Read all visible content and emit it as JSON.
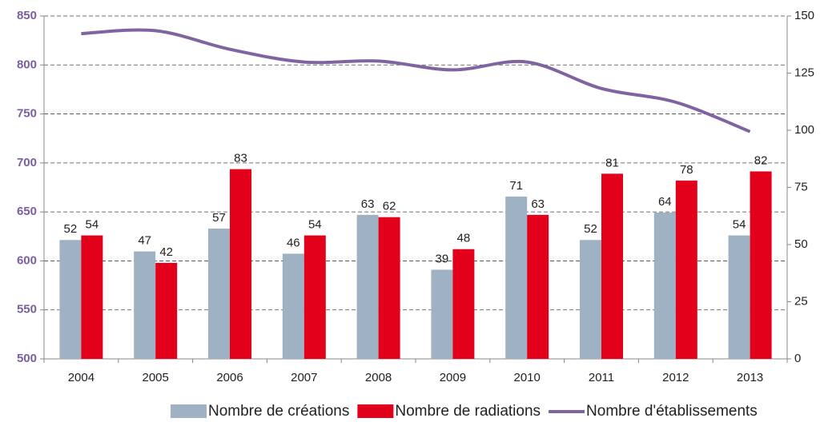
{
  "chart_data": {
    "type": "bar",
    "categories": [
      "2004",
      "2005",
      "2006",
      "2007",
      "2008",
      "2009",
      "2010",
      "2011",
      "2012",
      "2013"
    ],
    "series": [
      {
        "name": "Nombre de créations",
        "type": "bar",
        "axis": "y2",
        "color": "#9fb2c3",
        "values": [
          52,
          47,
          57,
          46,
          63,
          39,
          71,
          52,
          64,
          54
        ]
      },
      {
        "name": "Nombre de radiations",
        "type": "bar",
        "axis": "y2",
        "color": "#e2001a",
        "values": [
          54,
          42,
          83,
          54,
          62,
          48,
          63,
          81,
          78,
          82
        ]
      },
      {
        "name": "Nombre d'établissements",
        "type": "line",
        "axis": "y",
        "color": "#8064a2",
        "values": [
          832,
          835,
          816,
          803,
          804,
          795,
          803,
          776,
          762,
          732
        ]
      }
    ],
    "ylim": [
      500,
      850
    ],
    "yticks": [
      500,
      550,
      600,
      650,
      700,
      750,
      800,
      850
    ],
    "y2lim": [
      0,
      150
    ],
    "y2ticks": [
      0,
      25,
      50,
      75,
      100,
      125,
      150
    ],
    "grid": true,
    "legend": "bottom"
  }
}
